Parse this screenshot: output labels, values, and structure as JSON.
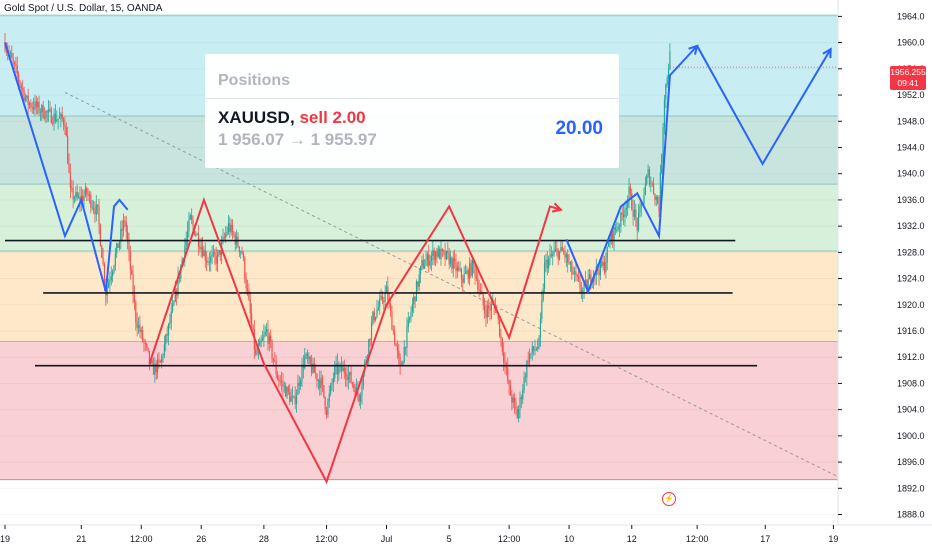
{
  "symbol_title": "Gold Spot / U.S. Dollar, 15, OANDA",
  "positions": {
    "header": "Positions",
    "symbol": "XAUUSD",
    "side": "sell 2.00",
    "prices": "1 956.07 → 1 955.97",
    "profit": "20.00"
  },
  "last_price": {
    "value": "1956.255",
    "countdown": "09:41"
  },
  "icons": {
    "alert": "lightning-icon"
  },
  "colors": {
    "bull": "#26a69a",
    "bear": "#ef5350",
    "zigzag_blue": "#2962ff",
    "zigzag_red": "#f23645",
    "trend_lines": "#131722",
    "zone_cyan": "#c8eef3",
    "zone_teal": "#c7e5de",
    "zone_green": "#d7f0d9",
    "zone_orange": "#fde8c9",
    "zone_red": "#f9d0d3"
  },
  "chart_data": {
    "type": "candlestick",
    "title": "Gold Spot / U.S. Dollar, 15, OANDA",
    "x_tick_labels": [
      "19",
      "21",
      "12:00",
      "26",
      "28",
      "12:00",
      "Jul",
      "5",
      "12:00",
      "10",
      "12",
      "12:00",
      "17",
      "19"
    ],
    "x_tick_index": [
      0,
      28,
      50,
      72,
      95,
      118,
      140,
      163,
      185,
      207,
      230,
      254,
      279,
      304
    ],
    "y_ticks": [
      1888,
      1892,
      1896,
      1900,
      1904,
      1908,
      1912,
      1916,
      1920,
      1924,
      1928,
      1932,
      1936,
      1940,
      1944,
      1948,
      1952,
      1956,
      1960,
      1964
    ],
    "ylim": [
      1886.4,
      1966.5
    ],
    "zones": [
      {
        "from": 1948.8,
        "to": 1964.2,
        "color": "cyan"
      },
      {
        "from": 1938.4,
        "to": 1948.8,
        "color": "teal"
      },
      {
        "from": 1928.2,
        "to": 1938.4,
        "color": "green"
      },
      {
        "from": 1914.4,
        "to": 1928.2,
        "color": "orange"
      },
      {
        "from": 1893.3,
        "to": 1914.4,
        "color": "red"
      }
    ],
    "horizontal_lines": [
      {
        "y": 1929.8,
        "x_start": 0,
        "x_end": 268
      },
      {
        "y": 1921.8,
        "x_start": 14,
        "x_end": 267
      },
      {
        "y": 1910.7,
        "x_start": 11,
        "x_end": 276
      }
    ],
    "dashed_trend": {
      "from": [
        22,
        1952.4
      ],
      "to": [
        306,
        1893.7
      ]
    },
    "close_path": [
      [
        0,
        1960
      ],
      [
        8,
        1951
      ],
      [
        16,
        1949
      ],
      [
        22,
        1948
      ],
      [
        24,
        1937
      ],
      [
        27,
        1936
      ],
      [
        30,
        1937
      ],
      [
        34,
        1934
      ],
      [
        37,
        1922
      ],
      [
        44,
        1933
      ],
      [
        48,
        1918
      ],
      [
        54,
        1910
      ],
      [
        57,
        1911
      ],
      [
        62,
        1920
      ],
      [
        65,
        1927
      ],
      [
        68,
        1933
      ],
      [
        74,
        1927
      ],
      [
        78,
        1927
      ],
      [
        82,
        1932
      ],
      [
        87,
        1928
      ],
      [
        92,
        1912
      ],
      [
        96,
        1916
      ],
      [
        100,
        1909
      ],
      [
        106,
        1905
      ],
      [
        110,
        1912
      ],
      [
        116,
        1908
      ],
      [
        118,
        1904
      ],
      [
        121,
        1910
      ],
      [
        125,
        1910
      ],
      [
        130,
        1906
      ],
      [
        135,
        1918
      ],
      [
        140,
        1922
      ],
      [
        145,
        1910
      ],
      [
        149,
        1919
      ],
      [
        153,
        1926
      ],
      [
        158,
        1928
      ],
      [
        163,
        1927
      ],
      [
        168,
        1924
      ],
      [
        172,
        1926
      ],
      [
        176,
        1919
      ],
      [
        180,
        1920
      ],
      [
        185,
        1907
      ],
      [
        188,
        1903
      ],
      [
        192,
        1912
      ],
      [
        196,
        1914
      ],
      [
        198,
        1926
      ],
      [
        202,
        1928
      ],
      [
        205,
        1928
      ],
      [
        208,
        1925
      ],
      [
        212,
        1922
      ],
      [
        216,
        1925
      ],
      [
        220,
        1926
      ],
      [
        222,
        1930
      ],
      [
        226,
        1933
      ],
      [
        229,
        1937
      ],
      [
        232,
        1932
      ],
      [
        236,
        1940
      ],
      [
        240,
        1935
      ],
      [
        242,
        1952
      ],
      [
        244,
        1958
      ]
    ],
    "zigzag_red": [
      [
        53,
        1911
      ],
      [
        73,
        1936
      ],
      [
        95,
        1911
      ],
      [
        118,
        1893
      ],
      [
        140,
        1920
      ],
      [
        163,
        1935
      ],
      [
        185,
        1915
      ],
      [
        200,
        1935
      ],
      [
        204,
        1934.5
      ]
    ],
    "zigzag_blue_history": [
      [
        0,
        1960
      ],
      [
        22,
        1930.5
      ],
      [
        28,
        1936
      ],
      [
        37,
        1922
      ],
      [
        40,
        1935
      ],
      [
        42,
        1936
      ],
      [
        45,
        1934.5
      ]
    ],
    "zigzag_blue_late": [
      [
        206,
        1930
      ],
      [
        214,
        1922
      ],
      [
        226,
        1935
      ],
      [
        232,
        1937
      ],
      [
        240,
        1930.5
      ],
      [
        244,
        1955
      ],
      [
        254,
        1959.5
      ]
    ],
    "zigzag_blue_projection": [
      [
        254,
        1959.5
      ],
      [
        258,
        1956.5
      ],
      [
        278,
        1941.5
      ],
      [
        303,
        1959
      ]
    ]
  }
}
